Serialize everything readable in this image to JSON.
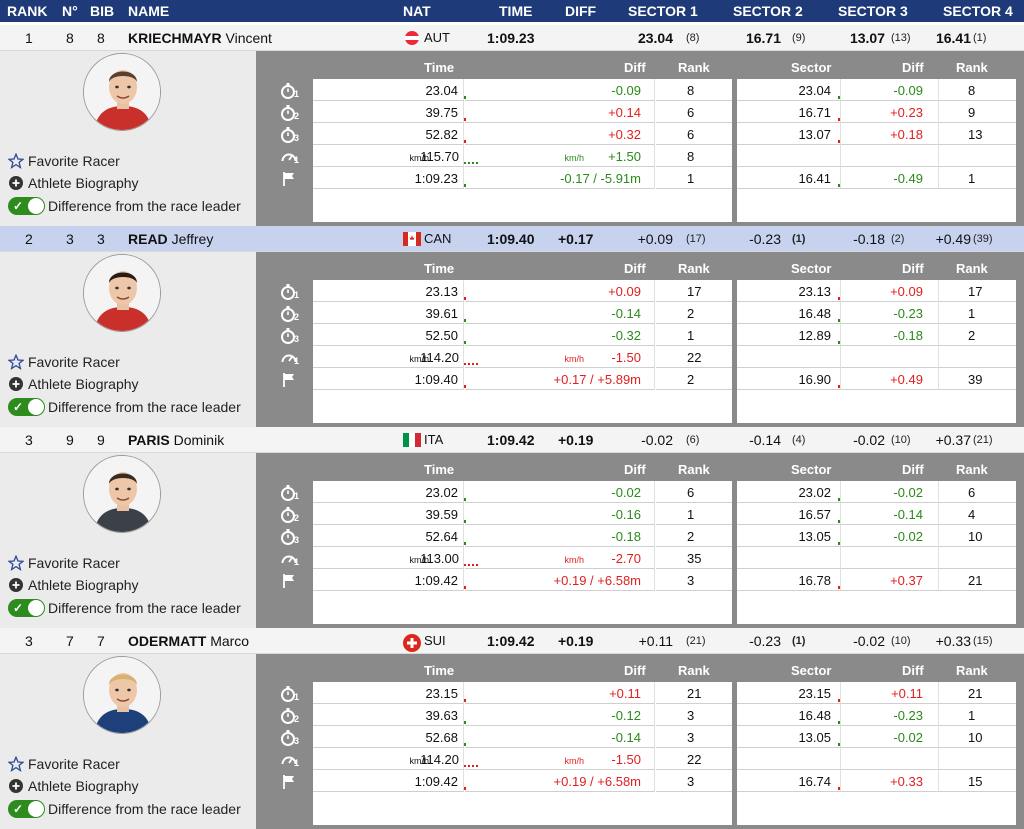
{
  "header": {
    "rank": "RANK",
    "no": "N°",
    "bib": "BIB",
    "name": "NAME",
    "nat": "NAT",
    "time": "TIME",
    "diff": "DIFF",
    "sector1": "SECTOR 1",
    "sector2": "SECTOR 2",
    "sector3": "SECTOR 3",
    "sector4": "SECTOR 4"
  },
  "table_headers": {
    "time": "Time",
    "diff": "Diff",
    "rank": "Rank",
    "sector": "Sector"
  },
  "links": {
    "favorite": "Favorite Racer",
    "bio": "Athlete Biography",
    "diff_leader": "Difference from the race leader"
  },
  "icons": [
    "stopwatch-icon",
    "stopwatch-icon",
    "stopwatch-icon",
    "speedometer-icon",
    "finish-flag-icon"
  ],
  "colors": {
    "header_bg": "#1f3a78",
    "highlight_row": "#c7d2ef",
    "positive_diff": "#e02020",
    "negative_diff": "#2a8a1a",
    "toggle_on": "#2e8b1e"
  },
  "racers": [
    {
      "rank": "1",
      "no": "8",
      "bib": "8",
      "last": "KRIECHMAYR",
      "first": "Vincent",
      "nat": "AUT",
      "flag": "aut",
      "time": "1:09.23",
      "diff": "",
      "s1": "23.04",
      "s1r": "(8)",
      "s2": "16.71",
      "s2r": "(9)",
      "s3": "13.07",
      "s3r": "(13)",
      "s4": "16.41",
      "s4r": "(1)",
      "bold_sectors": true,
      "highlight": false,
      "splits": [
        {
          "time": "23.04",
          "diff": "-0.09",
          "dcol": "green",
          "rank": "8",
          "sector": "23.04",
          "sdiff": "-0.09",
          "sdcol": "green",
          "srank": "8"
        },
        {
          "time": "39.75",
          "diff": "+0.14",
          "dcol": "red",
          "rank": "6",
          "sector": "16.71",
          "sdiff": "+0.23",
          "sdcol": "red",
          "srank": "9"
        },
        {
          "time": "52.82",
          "diff": "+0.32",
          "dcol": "red",
          "rank": "6",
          "sector": "13.07",
          "sdiff": "+0.18",
          "sdcol": "red",
          "srank": "13"
        }
      ],
      "speed": {
        "unit": "km/h",
        "time": "115.70",
        "diff_unit": "km/h",
        "diff": "+1.50",
        "dcol": "green",
        "rank": "8"
      },
      "finish": {
        "time": "1:09.23",
        "diff": "-0.17 / -5.91m",
        "dcol": "green",
        "rank": "1",
        "sector": "16.41",
        "sdiff": "-0.49",
        "sdcol": "green",
        "srank": "1"
      }
    },
    {
      "rank": "2",
      "no": "3",
      "bib": "3",
      "last": "READ",
      "first": "Jeffrey",
      "nat": "CAN",
      "flag": "can",
      "time": "1:09.40",
      "diff": "+0.17",
      "s1": "+0.09",
      "s1r": "(17)",
      "s2": "-0.23",
      "s2r": "(1)",
      "s3": "-0.18",
      "s3r": "(2)",
      "s4": "+0.49",
      "s4r": "(39)",
      "bold_sectors": false,
      "highlight": true,
      "splits": [
        {
          "time": "23.13",
          "diff": "+0.09",
          "dcol": "red",
          "rank": "17",
          "sector": "23.13",
          "sdiff": "+0.09",
          "sdcol": "red",
          "srank": "17"
        },
        {
          "time": "39.61",
          "diff": "-0.14",
          "dcol": "green",
          "rank": "2",
          "sector": "16.48",
          "sdiff": "-0.23",
          "sdcol": "green",
          "srank": "1"
        },
        {
          "time": "52.50",
          "diff": "-0.32",
          "dcol": "green",
          "rank": "1",
          "sector": "12.89",
          "sdiff": "-0.18",
          "sdcol": "green",
          "srank": "2"
        }
      ],
      "speed": {
        "unit": "km/h",
        "time": "114.20",
        "diff_unit": "km/h",
        "diff": "-1.50",
        "dcol": "red",
        "rank": "22"
      },
      "finish": {
        "time": "1:09.40",
        "diff": "+0.17 / +5.89m",
        "dcol": "red",
        "rank": "2",
        "sector": "16.90",
        "sdiff": "+0.49",
        "sdcol": "red",
        "srank": "39"
      }
    },
    {
      "rank": "3",
      "no": "9",
      "bib": "9",
      "last": "PARIS",
      "first": "Dominik",
      "nat": "ITA",
      "flag": "ita",
      "time": "1:09.42",
      "diff": "+0.19",
      "s1": "-0.02",
      "s1r": "(6)",
      "s2": "-0.14",
      "s2r": "(4)",
      "s3": "-0.02",
      "s3r": "(10)",
      "s4": "+0.37",
      "s4r": "(21)",
      "bold_sectors": false,
      "highlight": false,
      "splits": [
        {
          "time": "23.02",
          "diff": "-0.02",
          "dcol": "green",
          "rank": "6",
          "sector": "23.02",
          "sdiff": "-0.02",
          "sdcol": "green",
          "srank": "6"
        },
        {
          "time": "39.59",
          "diff": "-0.16",
          "dcol": "green",
          "rank": "1",
          "sector": "16.57",
          "sdiff": "-0.14",
          "sdcol": "green",
          "srank": "4"
        },
        {
          "time": "52.64",
          "diff": "-0.18",
          "dcol": "green",
          "rank": "2",
          "sector": "13.05",
          "sdiff": "-0.02",
          "sdcol": "green",
          "srank": "10"
        }
      ],
      "speed": {
        "unit": "km/h",
        "time": "113.00",
        "diff_unit": "km/h",
        "diff": "-2.70",
        "dcol": "red",
        "rank": "35"
      },
      "finish": {
        "time": "1:09.42",
        "diff": "+0.19 / +6.58m",
        "dcol": "red",
        "rank": "3",
        "sector": "16.78",
        "sdiff": "+0.37",
        "sdcol": "red",
        "srank": "21"
      }
    },
    {
      "rank": "3",
      "no": "7",
      "bib": "7",
      "last": "ODERMATT",
      "first": "Marco",
      "nat": "SUI",
      "flag": "sui",
      "time": "1:09.42",
      "diff": "+0.19",
      "s1": "+0.11",
      "s1r": "(21)",
      "s2": "-0.23",
      "s2r": "(1)",
      "s3": "-0.02",
      "s3r": "(10)",
      "s4": "+0.33",
      "s4r": "(15)",
      "bold_sectors": false,
      "highlight": false,
      "splits": [
        {
          "time": "23.15",
          "diff": "+0.11",
          "dcol": "red",
          "rank": "21",
          "sector": "23.15",
          "sdiff": "+0.11",
          "sdcol": "red",
          "srank": "21"
        },
        {
          "time": "39.63",
          "diff": "-0.12",
          "dcol": "green",
          "rank": "3",
          "sector": "16.48",
          "sdiff": "-0.23",
          "sdcol": "green",
          "srank": "1"
        },
        {
          "time": "52.68",
          "diff": "-0.14",
          "dcol": "green",
          "rank": "3",
          "sector": "13.05",
          "sdiff": "-0.02",
          "sdcol": "green",
          "srank": "10"
        }
      ],
      "speed": {
        "unit": "km/h",
        "time": "114.20",
        "diff_unit": "km/h",
        "diff": "-1.50",
        "dcol": "red",
        "rank": "22"
      },
      "finish": {
        "time": "1:09.42",
        "diff": "+0.19 / +6.58m",
        "dcol": "red",
        "rank": "3",
        "sector": "16.74",
        "sdiff": "+0.33",
        "sdcol": "red",
        "srank": "15"
      }
    }
  ]
}
